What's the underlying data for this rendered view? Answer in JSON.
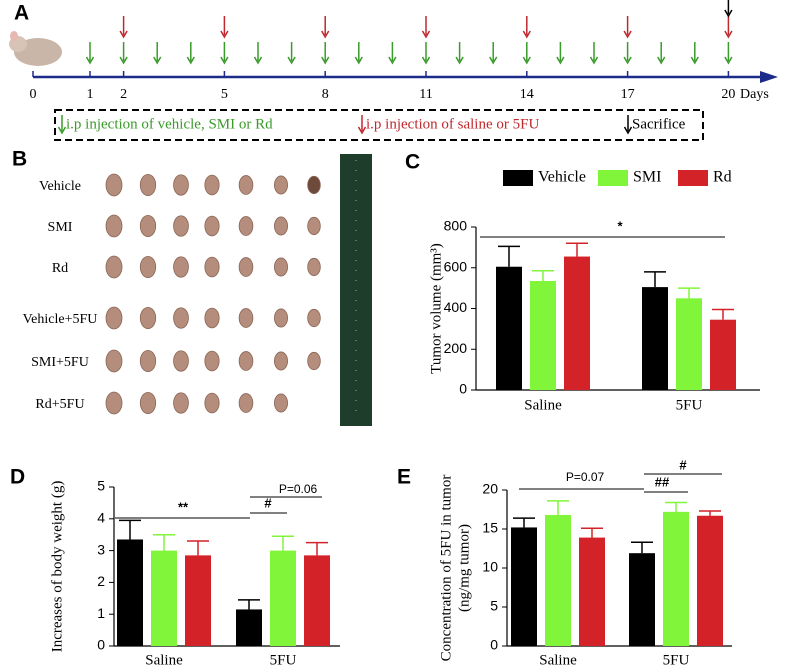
{
  "panels": [
    "A",
    "B",
    "C",
    "D",
    "E"
  ],
  "timeline": {
    "ticks": [
      0,
      1,
      2,
      5,
      8,
      11,
      14,
      17,
      20
    ],
    "unit": "Days",
    "legend": [
      "i.p injection of vehicle, SMI or Rd",
      "i.p injection of saline or 5FU",
      "Sacrifice"
    ]
  },
  "photo": {
    "rows": [
      "Vehicle",
      "SMI",
      "Rd",
      "Vehicle+5FU",
      "SMI+5FU",
      "Rd+5FU"
    ]
  },
  "chart_data": [
    {
      "type": "bar",
      "ylabel": "Tumor volume (mm³)",
      "categories": [
        "Saline",
        "5FU"
      ],
      "series": [
        {
          "name": "Vehicle",
          "color": "#000000",
          "values": [
            605,
            505
          ],
          "errors": [
            100,
            75
          ]
        },
        {
          "name": "SMI",
          "color": "#80f53a",
          "values": [
            535,
            450
          ],
          "errors": [
            50,
            50
          ]
        },
        {
          "name": "Rd",
          "color": "#d42229",
          "values": [
            655,
            345
          ],
          "errors": [
            65,
            50
          ]
        }
      ],
      "ylim": [
        0,
        800
      ],
      "yticks": [
        0,
        200,
        400,
        600,
        800
      ],
      "annotations": [
        "*"
      ]
    },
    {
      "type": "bar",
      "ylabel": "Increases of body weight (g)",
      "categories": [
        "Saline",
        "5FU"
      ],
      "series": [
        {
          "color": "#000000",
          "values": [
            3.35,
            1.15
          ],
          "errors": [
            0.6,
            0.3
          ]
        },
        {
          "color": "#80f53a",
          "values": [
            3.0,
            3.0
          ],
          "errors": [
            0.5,
            0.45
          ]
        },
        {
          "color": "#d42229",
          "values": [
            2.85,
            2.85
          ],
          "errors": [
            0.45,
            0.4
          ]
        }
      ],
      "ylim": [
        0,
        5
      ],
      "yticks": [
        0,
        1,
        2,
        3,
        4,
        5
      ],
      "annotations": [
        "**",
        "#",
        "P=0.06"
      ]
    },
    {
      "type": "bar",
      "ylabel": [
        "Concentration of 5FU in tumor",
        "(ng/mg tumor)"
      ],
      "categories": [
        "Saline",
        "5FU"
      ],
      "series": [
        {
          "color": "#000000",
          "values": [
            15.2,
            11.9
          ],
          "errors": [
            1.2,
            1.4
          ]
        },
        {
          "color": "#80f53a",
          "values": [
            16.8,
            17.2
          ],
          "errors": [
            1.8,
            1.2
          ]
        },
        {
          "color": "#d42229",
          "values": [
            13.9,
            16.7
          ],
          "errors": [
            1.2,
            0.6
          ]
        }
      ],
      "ylim": [
        0,
        20
      ],
      "yticks": [
        0,
        5,
        10,
        15,
        20
      ],
      "annotations": [
        "P=0.07",
        "##",
        "#"
      ]
    }
  ]
}
